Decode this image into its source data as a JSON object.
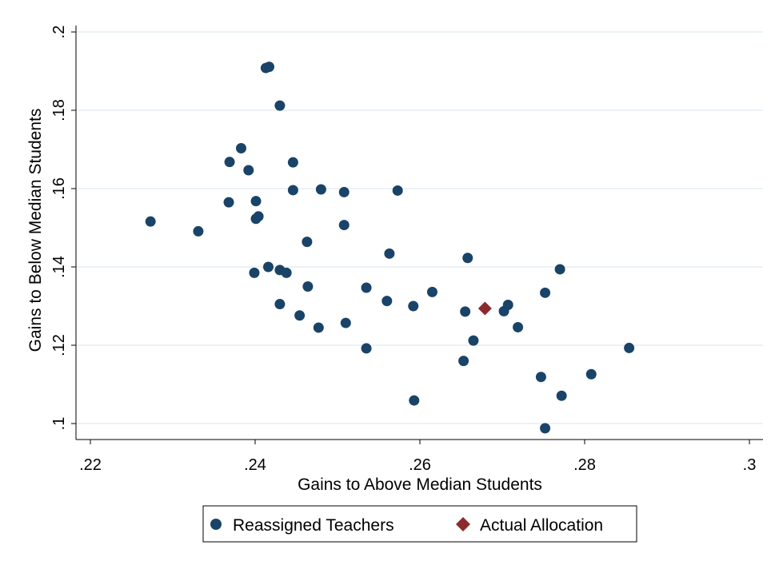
{
  "chart_data": {
    "type": "scatter",
    "xlabel": "Gains to Above Median Students",
    "ylabel": "Gains to Below Median Students",
    "xlim": [
      0.22,
      0.3
    ],
    "ylim": [
      0.1,
      0.2
    ],
    "x_ticks": [
      0.22,
      0.24,
      0.26,
      0.28,
      0.3
    ],
    "x_tick_labels": [
      ".22",
      ".24",
      ".26",
      ".28",
      ".3"
    ],
    "y_ticks": [
      0.1,
      0.12,
      0.14,
      0.16,
      0.18,
      0.2
    ],
    "y_tick_labels": [
      ".1",
      ".12",
      ".14",
      ".16",
      ".18",
      ".2"
    ],
    "grid": true,
    "legend_position": "bottom",
    "series": [
      {
        "name": "Reassigned Teachers",
        "marker": "circle",
        "color": "#1a4368",
        "points": [
          [
            0.2273,
            0.1516
          ],
          [
            0.2331,
            0.1491
          ],
          [
            0.2369,
            0.1668
          ],
          [
            0.2368,
            0.1565
          ],
          [
            0.2383,
            0.1703
          ],
          [
            0.2392,
            0.1647
          ],
          [
            0.2401,
            0.1568
          ],
          [
            0.2401,
            0.1523
          ],
          [
            0.2404,
            0.1529
          ],
          [
            0.2399,
            0.1385
          ],
          [
            0.2413,
            0.1908
          ],
          [
            0.2417,
            0.1911
          ],
          [
            0.243,
            0.1812
          ],
          [
            0.2416,
            0.14
          ],
          [
            0.243,
            0.1392
          ],
          [
            0.2438,
            0.1385
          ],
          [
            0.243,
            0.1305
          ],
          [
            0.2446,
            0.1667
          ],
          [
            0.2446,
            0.1596
          ],
          [
            0.2454,
            0.1276
          ],
          [
            0.2463,
            0.1464
          ],
          [
            0.2464,
            0.135
          ],
          [
            0.2477,
            0.1245
          ],
          [
            0.248,
            0.1598
          ],
          [
            0.2508,
            0.1591
          ],
          [
            0.2508,
            0.1507
          ],
          [
            0.251,
            0.1257
          ],
          [
            0.2535,
            0.1347
          ],
          [
            0.2535,
            0.1192
          ],
          [
            0.2563,
            0.1434
          ],
          [
            0.256,
            0.1313
          ],
          [
            0.2573,
            0.1595
          ],
          [
            0.2592,
            0.13
          ],
          [
            0.2593,
            0.1059
          ],
          [
            0.2615,
            0.1336
          ],
          [
            0.2653,
            0.116
          ],
          [
            0.2655,
            0.1286
          ],
          [
            0.2658,
            0.1423
          ],
          [
            0.2665,
            0.1212
          ],
          [
            0.2702,
            0.1287
          ],
          [
            0.2707,
            0.1303
          ],
          [
            0.2719,
            0.1246
          ],
          [
            0.2747,
            0.1119
          ],
          [
            0.2752,
            0.1334
          ],
          [
            0.2752,
            0.0988
          ],
          [
            0.277,
            0.1394
          ],
          [
            0.2772,
            0.1071
          ],
          [
            0.2808,
            0.1126
          ],
          [
            0.2854,
            0.1193
          ]
        ]
      },
      {
        "name": "Actual Allocation",
        "marker": "diamond",
        "color": "#8b2a2e",
        "points": [
          [
            0.2679,
            0.1294
          ]
        ]
      }
    ]
  }
}
